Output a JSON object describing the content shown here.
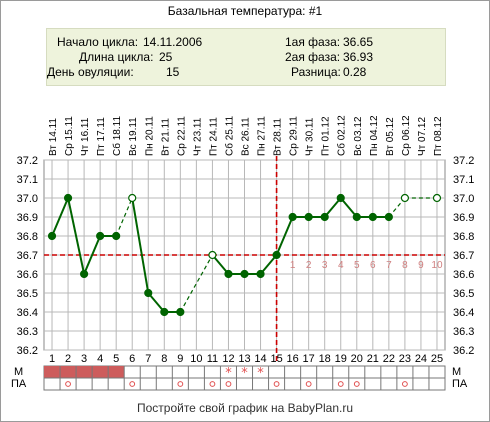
{
  "title": "Базальная температура: #1",
  "info": {
    "cycle_start_label": "Начало цикла:",
    "cycle_start": "14.11.2006",
    "cycle_length_label": "Длина цикла:",
    "cycle_length": "25",
    "ovulation_day_label": "День овуляции:",
    "ovulation_day": "15",
    "phase1_label": "1ая фаза:",
    "phase1": "36.65",
    "phase2_label": "2ая фаза:",
    "phase2": "36.93",
    "difference_label": "Разница:",
    "difference": "0.28"
  },
  "row_labels": {
    "m": "М",
    "pa": "ПА"
  },
  "footer": "Постройте свой график на BabyPlan.ru",
  "colors": {
    "line": "#006400",
    "grid": "#b8b8b8",
    "cover": "#cc0000",
    "menses": "#cd5c5c",
    "marker": "#e05050",
    "luteal_numbers": "#d08080"
  },
  "chart_data": {
    "type": "line",
    "title": "Базальная температура: #1",
    "x": [
      1,
      2,
      3,
      4,
      5,
      6,
      7,
      8,
      9,
      10,
      11,
      12,
      13,
      14,
      15,
      16,
      17,
      18,
      19,
      20,
      21,
      22,
      23,
      24,
      25
    ],
    "dates": [
      "Вт 14.11",
      "Ср 15.11",
      "Чт 16.11",
      "Пт 17.11",
      "Сб 18.11",
      "Вс 19.11",
      "Пн 20.11",
      "Вт 21.11",
      "Ср 22.11",
      "Чт 23.11",
      "Пт 24.11",
      "Сб 25.11",
      "Вс 26.11",
      "Пн 27.11",
      "Вт 28.11",
      "Ср 29.11",
      "Чт 30.11",
      "Пт 01.12",
      "Сб 02.12",
      "Вс 03.12",
      "Пн 04.12",
      "Вт 05.12",
      "Ср 06.12",
      "Чт 07.12",
      "Пт 08.12"
    ],
    "y_ticks": [
      "36.2",
      "36.3",
      "36.4",
      "36.5",
      "36.6",
      "36.7",
      "36.8",
      "36.9",
      "37.0",
      "37.1",
      "37.2"
    ],
    "ylim": [
      36.2,
      37.2
    ],
    "temperatures": [
      36.8,
      37.0,
      36.6,
      36.8,
      36.8,
      37.0,
      36.5,
      36.4,
      36.4,
      null,
      36.7,
      36.6,
      36.6,
      36.6,
      36.7,
      36.9,
      36.9,
      36.9,
      37.0,
      36.9,
      36.9,
      36.9,
      37.0,
      null,
      37.0
    ],
    "excluded_days": [
      6,
      11,
      23,
      25
    ],
    "coverline": 36.7,
    "ovulation_day": 15,
    "luteal_day_numbers": [
      "1",
      "2",
      "3",
      "4",
      "5",
      "6",
      "7",
      "8",
      "9",
      "10"
    ],
    "menstruation_days": [
      1,
      2,
      3,
      4,
      5
    ],
    "m_star_days": [
      12,
      13,
      14
    ],
    "pa_circle_days": [
      2,
      6,
      9,
      11,
      12,
      15,
      17,
      19,
      20,
      23
    ],
    "grid": true
  }
}
